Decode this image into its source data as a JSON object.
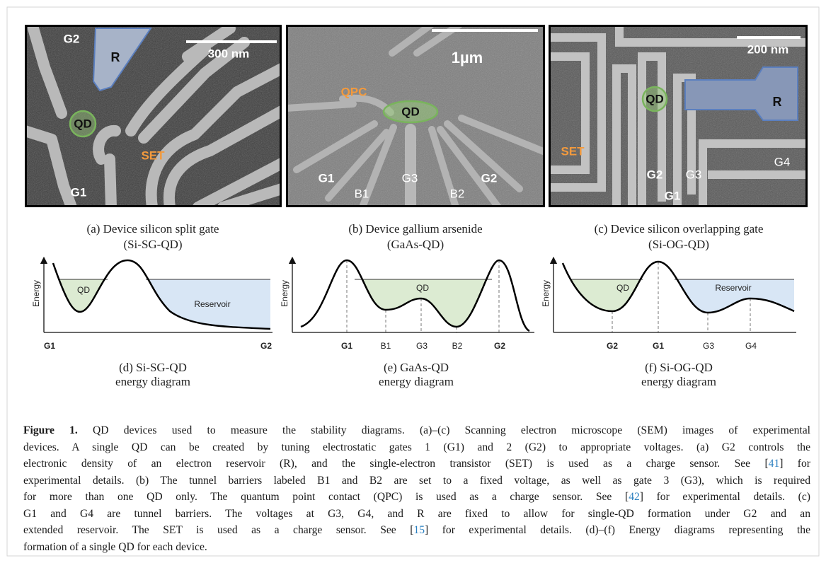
{
  "panels": [
    {
      "labels": [
        "G2",
        "R",
        "300 nm",
        "QD",
        "SET",
        "G1"
      ],
      "caption": [
        "(a) Device silicon split gate",
        "(Si-SG-QD)"
      ]
    },
    {
      "labels": [
        "1µm",
        "QPC",
        "QD",
        "G1",
        "B1",
        "G3",
        "B2",
        "G2"
      ],
      "caption": [
        "(b) Device gallium arsenide",
        "(GaAs-QD)"
      ]
    },
    {
      "labels": [
        "200 nm",
        "QD",
        "R",
        "SET",
        "G2",
        "G1",
        "G3",
        "G4"
      ],
      "caption": [
        "(c) Device silicon overlapping gate",
        "(Si-OG-QD)"
      ]
    }
  ],
  "diagrams": [
    {
      "y_label": "Energy",
      "regions": [
        "QD",
        "Reservoir"
      ],
      "gates": [
        "G1",
        "G2"
      ],
      "caption": [
        "(d) Si-SG-QD",
        "energy diagram"
      ]
    },
    {
      "y_label": "Energy",
      "regions": [
        "QD"
      ],
      "gates": [
        "G1",
        "B1",
        "G3",
        "B2",
        "G2"
      ],
      "caption": [
        "(e) GaAs-QD",
        "energy diagram"
      ]
    },
    {
      "y_label": "Energy",
      "regions": [
        "QD",
        "Reservoir"
      ],
      "gates": [
        "G2",
        "G1",
        "G3",
        "G4"
      ],
      "caption": [
        "(f) Si-OG-QD",
        "energy diagram"
      ]
    }
  ],
  "caption": {
    "label": "Figure 1.",
    "lines": [
      [
        {
          "text": " QD devices used to measure the stability diagrams. (a)–(c) Scanning electron microscope (SEM) images of experimental"
        }
      ],
      [
        {
          "text": "devices. A single QD can be created by tuning electrostatic gates 1 (G1) and 2 (G2) to appropriate voltages. (a) G2 controls the"
        }
      ],
      [
        {
          "text": "electronic density of an electron reservoir (R), and the single-electron transistor (SET) is used as a charge sensor. See ["
        },
        {
          "ref": "41"
        },
        {
          "text": "] for"
        }
      ],
      [
        {
          "text": "experimental details. (b) The tunnel barriers labeled B1 and B2 are set to a fixed voltage, as well as gate 3 (G3), which is required"
        }
      ],
      [
        {
          "text": "for more than one QD only. The quantum point contact (QPC) is used as a charge sensor. See ["
        },
        {
          "ref": "42"
        },
        {
          "text": "] for experimental details. (c)"
        }
      ],
      [
        {
          "text": "G1 and G4 are tunnel barriers. The voltages at G3, G4, and R are fixed to allow for single-QD formation under G2 and an"
        }
      ],
      [
        {
          "text": "extended reservoir. The SET is used as a charge sensor. See ["
        },
        {
          "ref": "15"
        },
        {
          "text": "] for experimental details. (d)–(f) Energy diagrams representing the"
        }
      ],
      [
        {
          "text": "formation of a single QD for each device."
        }
      ]
    ]
  }
}
